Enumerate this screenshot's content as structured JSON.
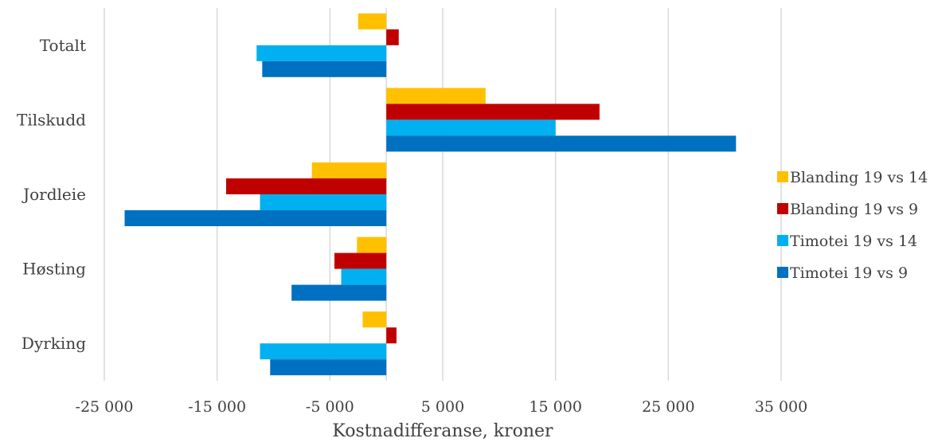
{
  "chart_data": {
    "type": "bar",
    "orientation": "horizontal",
    "title": "",
    "xlabel": "Kostnadifferanse, kroner",
    "ylabel": "",
    "xlim": [
      -25000,
      35000
    ],
    "xticks": [
      -25000,
      -15000,
      -5000,
      5000,
      15000,
      25000,
      35000
    ],
    "xtick_labels": [
      "-25 000",
      "-15 000",
      "-5 000",
      "5 000",
      "15 000",
      "25 000",
      "35 000"
    ],
    "grid": "vertical",
    "legend_position": "right",
    "categories": [
      "Totalt",
      "Tilskudd",
      "Jordleie",
      "Høsting",
      "Dyrking"
    ],
    "series": [
      {
        "name": "Blanding 19 vs 14",
        "color": "#FFC000",
        "values": [
          -2500,
          8800,
          -6600,
          -2600,
          -2100
        ]
      },
      {
        "name": "Blanding 19 vs 9",
        "color": "#C00000",
        "values": [
          1100,
          18900,
          -14200,
          -4600,
          900
        ]
      },
      {
        "name": "Timotei 19 vs 14",
        "color": "#00B0F0",
        "values": [
          -11500,
          15000,
          -11200,
          -4000,
          -11200
        ]
      },
      {
        "name": "Timotei 19 vs 9",
        "color": "#0070C0",
        "values": [
          -11000,
          31000,
          -23200,
          -8400,
          -10300
        ]
      }
    ]
  }
}
